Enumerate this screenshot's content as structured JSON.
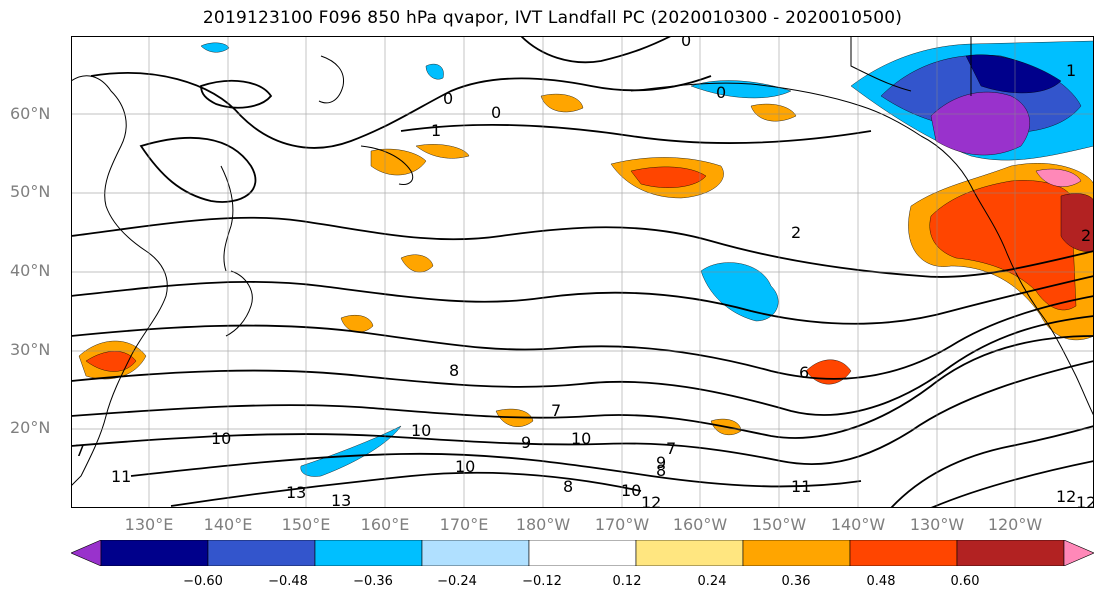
{
  "title": "2019123100 F096 850 hPa qvapor, IVT Landfall PC (2020010300 - 2020010500)",
  "map": {
    "lat_labels": [
      "60°N",
      "50°N",
      "40°N",
      "30°N",
      "20°N"
    ],
    "lon_labels": [
      "130°E",
      "140°E",
      "150°E",
      "160°E",
      "170°E",
      "180°W",
      "170°W",
      "160°W",
      "150°W",
      "140°W",
      "130°W",
      "120°W"
    ],
    "contour_labels": [
      "0",
      "0",
      "0",
      "0",
      "1",
      "2",
      "1",
      "2",
      "7",
      "8",
      "9",
      "10",
      "10",
      "10",
      "7",
      "9",
      "10",
      "11",
      "12",
      "12",
      "13",
      "6",
      "8",
      "7",
      "8",
      "10",
      "11",
      "12",
      "13"
    ]
  },
  "colorbar": {
    "ticks": [
      "−0.60",
      "−0.48",
      "−0.36",
      "−0.24",
      "−0.12",
      "0.12",
      "0.24",
      "0.36",
      "0.48",
      "0.60"
    ],
    "colors": [
      "#9932cc",
      "#00008b",
      "#3355cc",
      "#00bfff",
      "#b0e0ff",
      "#ffffff",
      "#ffe680",
      "#ffa500",
      "#ff4500",
      "#b22222",
      "#ff88b8"
    ]
  }
}
